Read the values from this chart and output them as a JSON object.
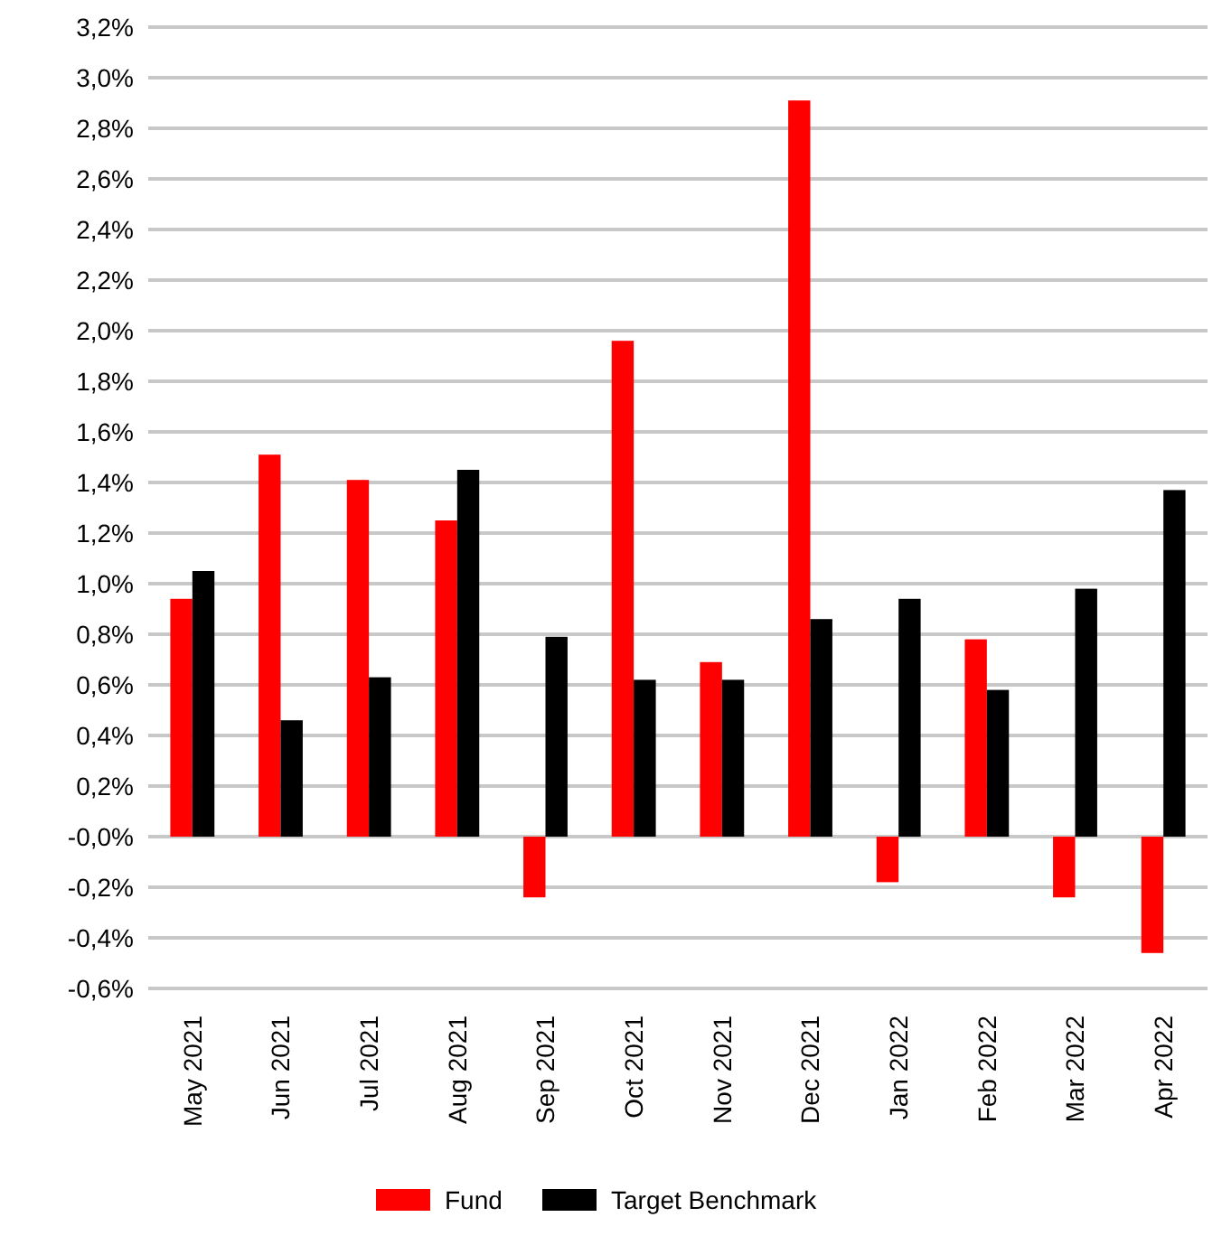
{
  "chart_data": {
    "type": "bar",
    "categories": [
      "May 2021",
      "Jun 2021",
      "Jul 2021",
      "Aug 2021",
      "Sep 2021",
      "Oct 2021",
      "Nov 2021",
      "Dec 2021",
      "Jan 2022",
      "Feb 2022",
      "Mar 2022",
      "Apr 2022"
    ],
    "series": [
      {
        "name": "Fund",
        "color": "#ff0000",
        "values": [
          0.94,
          1.51,
          1.41,
          1.25,
          -0.24,
          1.96,
          0.69,
          2.91,
          -0.18,
          0.78,
          -0.24,
          -0.46
        ]
      },
      {
        "name": "Target Benchmark",
        "color": "#000000",
        "values": [
          1.05,
          0.46,
          0.63,
          1.45,
          0.79,
          0.62,
          0.62,
          0.86,
          0.94,
          0.58,
          0.98,
          1.37
        ]
      }
    ],
    "ylim": [
      -0.6,
      3.2
    ],
    "yticks": [
      {
        "value": -0.6,
        "label": "-0,6%"
      },
      {
        "value": -0.4,
        "label": "-0,4%"
      },
      {
        "value": -0.2,
        "label": "-0,2%"
      },
      {
        "value": 0,
        "label": "-0,0%"
      },
      {
        "value": 0.2,
        "label": "0,2%"
      },
      {
        "value": 0.4,
        "label": "0,4%"
      },
      {
        "value": 0.6,
        "label": "0,6%"
      },
      {
        "value": 0.8,
        "label": "0,8%"
      },
      {
        "value": 1.0,
        "label": "1,0%"
      },
      {
        "value": 1.2,
        "label": "1,2%"
      },
      {
        "value": 1.4,
        "label": "1,4%"
      },
      {
        "value": 1.6,
        "label": "1,6%"
      },
      {
        "value": 1.8,
        "label": "1,8%"
      },
      {
        "value": 2.0,
        "label": "2,0%"
      },
      {
        "value": 2.2,
        "label": "2,2%"
      },
      {
        "value": 2.4,
        "label": "2,4%"
      },
      {
        "value": 2.6,
        "label": "2,6%"
      },
      {
        "value": 2.8,
        "label": "2,8%"
      },
      {
        "value": 3.0,
        "label": "3,0%"
      },
      {
        "value": 3.2,
        "label": "3,2%"
      }
    ],
    "grid": "y",
    "legend": "bottom"
  }
}
